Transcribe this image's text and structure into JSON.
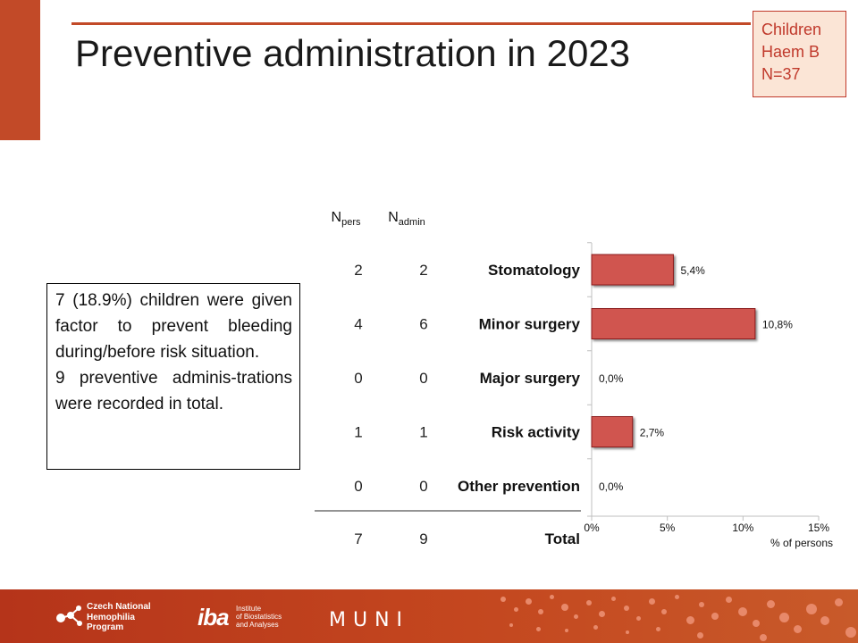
{
  "slide": {
    "title": "Preventive administration in 2023",
    "cohort": {
      "line1": "Children",
      "line2": "Haem B",
      "line3": "N=37"
    },
    "summary": [
      "7 (18.9%) children were given factor to prevent bleeding during/before risk situation.",
      "9 preventive adminis-trations were recorded in total."
    ]
  },
  "table": {
    "header_npers_main": "N",
    "header_npers_sub": "pers",
    "header_nadmin_main": "N",
    "header_nadmin_sub": "admin",
    "rows": [
      {
        "label": "Stomatology",
        "npers": "2",
        "nadmin": "2"
      },
      {
        "label": "Minor surgery",
        "npers": "4",
        "nadmin": "6"
      },
      {
        "label": "Major surgery",
        "npers": "0",
        "nadmin": "0"
      },
      {
        "label": "Risk activity",
        "npers": "1",
        "nadmin": "1"
      },
      {
        "label": "Other prevention",
        "npers": "0",
        "nadmin": "0"
      }
    ],
    "total": {
      "label": "Total",
      "npers": "7",
      "nadmin": "9"
    }
  },
  "chart_data": {
    "type": "bar",
    "orientation": "horizontal",
    "categories": [
      "Stomatology",
      "Minor surgery",
      "Major surgery",
      "Risk activity",
      "Other prevention"
    ],
    "values": [
      5.4,
      10.8,
      0.0,
      2.7,
      0.0
    ],
    "data_labels": [
      "5,4%",
      "10,8%",
      "0,0%",
      "2,7%",
      "0,0%"
    ],
    "xlim": [
      0,
      15
    ],
    "xticks": [
      0,
      5,
      10,
      15
    ],
    "xtick_labels": [
      "0%",
      "5%",
      "10%",
      "15%"
    ],
    "xlabel": "% of persons",
    "grid": false,
    "bar_color": "#d05450",
    "bar_edge_color": "#8b1a1a"
  },
  "footer": {
    "logo1": "Czech National\nHemophilia\nProgram",
    "logo2_mark": "iba",
    "logo2": "Institute\nof Biostatistics\nand Analyses",
    "logo3": "MUNI"
  },
  "colors": {
    "accent": "#c24a28",
    "cohort_text": "#c0392b",
    "cohort_bg": "#fbe5d6"
  }
}
